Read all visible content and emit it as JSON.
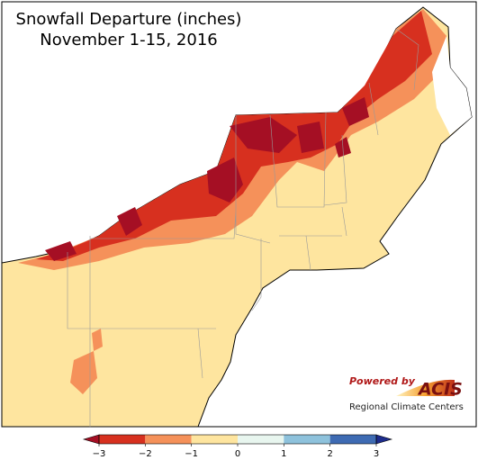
{
  "title": "Snowfall Departure (inches)",
  "subtitle": "November 1-15, 2016",
  "legend": {
    "ticks": [
      {
        "value": -3,
        "label": "−3"
      },
      {
        "value": -2,
        "label": "−2"
      },
      {
        "value": -1,
        "label": "−1"
      },
      0,
      1,
      2,
      3
    ],
    "colors": [
      "#d7301f",
      "#f5915a",
      "#fee59f",
      "#e8f6ef",
      "#8ec2dc",
      "#3e6bb3"
    ],
    "under_color": "#a50f24",
    "over_color": "#1d2c8c"
  },
  "logo": {
    "powered_by": "Powered by",
    "name": "ACIS",
    "tagline": "Regional Climate Centers"
  }
}
